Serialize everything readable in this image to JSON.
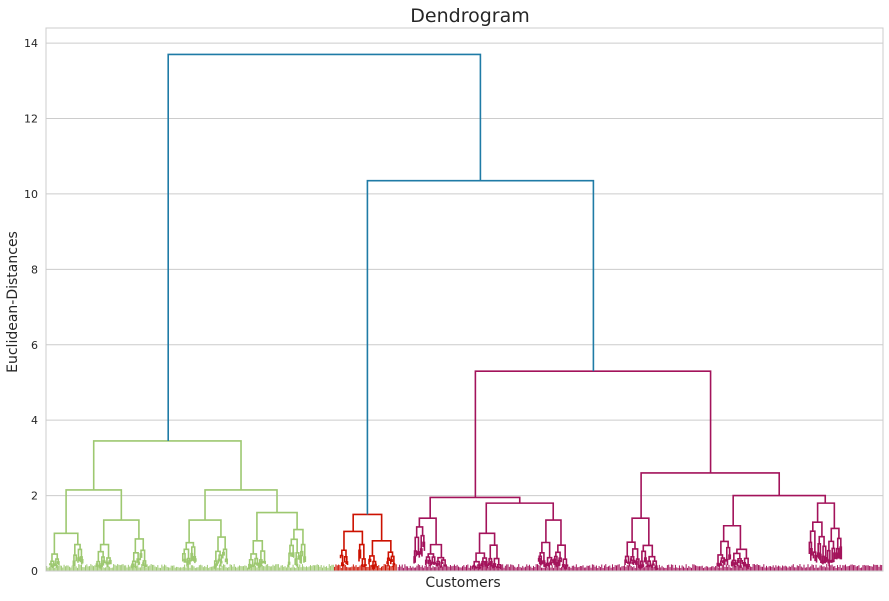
{
  "chart_data": {
    "type": "dendrogram",
    "title": "Dendrogram",
    "xlabel": "Customers",
    "ylabel": "Euclidean-Distances",
    "ylim": [
      0,
      14.4
    ],
    "yticks": [
      0,
      2,
      4,
      6,
      8,
      10,
      12,
      14
    ],
    "grid": "horizontal",
    "colors": {
      "link_above_threshold": "#1f7ba6",
      "cluster_1": "#9dc870",
      "cluster_2": "#cc1100",
      "cluster_3": "#a3135b",
      "grid": "#cccccc",
      "frame": "#cccccc"
    },
    "leaf_range": [
      0,
      1000
    ],
    "top_links": [
      {
        "x_left": 146,
        "x_right": 519,
        "height": 13.7,
        "left_child_height": 3.45,
        "right_child_height": 10.35,
        "color": "link_above_threshold"
      },
      {
        "x_left": 384,
        "x_right": 654,
        "height": 10.35,
        "left_child_height": 1.5,
        "right_child_height": 5.3,
        "color": "link_above_threshold"
      }
    ],
    "clusters": [
      {
        "name_key": "cluster_1",
        "color": "cluster_1",
        "x_range": [
          0,
          344
        ],
        "links": [
          {
            "x_left": 57,
            "x_right": 233,
            "height": 3.45,
            "left_child_height": 2.15,
            "right_child_height": 2.15
          },
          {
            "x_left": 24,
            "x_right": 90,
            "height": 2.15,
            "left_child_height": 1.0,
            "right_child_height": 1.35
          },
          {
            "x_left": 190,
            "x_right": 276,
            "height": 2.15,
            "left_child_height": 1.35,
            "right_child_height": 1.55
          },
          {
            "x_left": 10,
            "x_right": 38,
            "height": 1.0,
            "left_child_height": 0.45,
            "right_child_height": 0.7
          },
          {
            "x_left": 69,
            "x_right": 111,
            "height": 1.35,
            "left_child_height": 0.7,
            "right_child_height": 0.85
          },
          {
            "x_left": 171,
            "x_right": 209,
            "height": 1.35,
            "left_child_height": 0.75,
            "right_child_height": 0.9
          },
          {
            "x_left": 252,
            "x_right": 300,
            "height": 1.55,
            "left_child_height": 0.8,
            "right_child_height": 1.1
          }
        ]
      },
      {
        "name_key": "cluster_2",
        "color": "cluster_2",
        "x_range": [
          344,
          420
        ],
        "links": [
          {
            "x_left": 367,
            "x_right": 401,
            "height": 1.5,
            "left_child_height": 1.05,
            "right_child_height": 0.8
          },
          {
            "x_left": 356,
            "x_right": 378,
            "height": 1.05,
            "left_child_height": 0.55,
            "right_child_height": 0.7
          },
          {
            "x_left": 390,
            "x_right": 412,
            "height": 0.8,
            "left_child_height": 0.4,
            "right_child_height": 0.5
          }
        ]
      },
      {
        "name_key": "cluster_3",
        "color": "cluster_3",
        "x_range": [
          420,
          1000
        ],
        "links": [
          {
            "x_left": 513,
            "x_right": 794,
            "height": 5.3,
            "left_child_height": 1.95,
            "right_child_height": 2.6
          },
          {
            "x_left": 459,
            "x_right": 566,
            "height": 1.95,
            "left_child_height": 1.4,
            "right_child_height": 1.8
          },
          {
            "x_left": 711,
            "x_right": 876,
            "height": 2.6,
            "left_child_height": 1.4,
            "right_child_height": 2.0
          },
          {
            "x_left": 526,
            "x_right": 606,
            "height": 1.8,
            "left_child_height": 1.0,
            "right_child_height": 1.35
          },
          {
            "x_left": 821,
            "x_right": 931,
            "height": 2.0,
            "left_child_height": 1.2,
            "right_child_height": 1.8
          }
        ]
      }
    ]
  }
}
